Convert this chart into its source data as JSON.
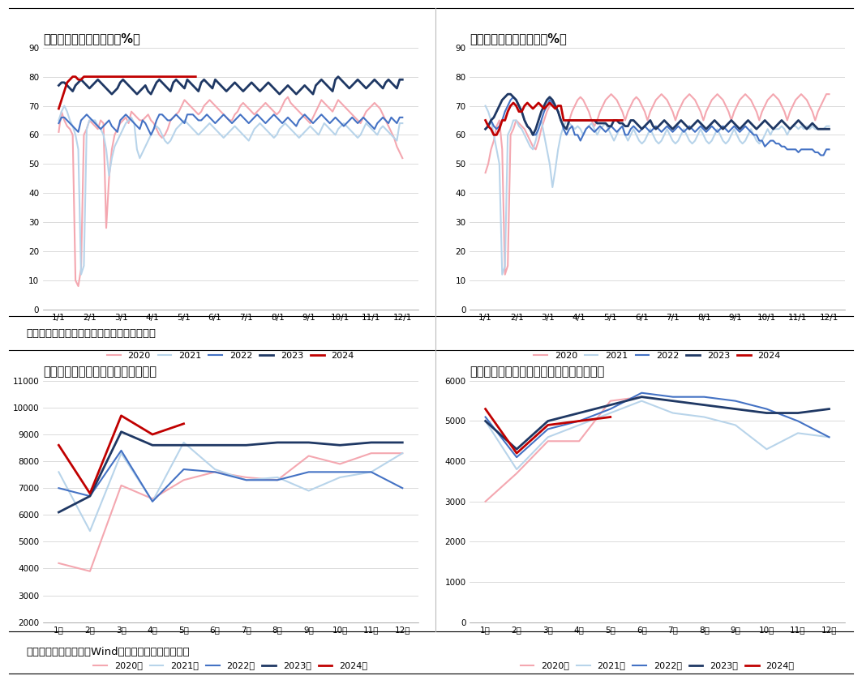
{
  "top_left_title": "图：半钢胎行业开工率（%）",
  "top_right_title": "图：全钢胎行业开工率（%）",
  "bottom_left_title": "图：中国橡胶轮胎外胎产量（万条）",
  "bottom_right_title": "图：中国新的充气橡胶轮胎出口量（万条）",
  "source1": "数据来源：钢联数据，广发期货发展研究中心",
  "source2": "数据来源：钢联数据，Wind，广发期货发展研究中心",
  "colors": {
    "2020": "#f4a7b0",
    "2021": "#b8d4ea",
    "2022": "#4472c4",
    "2023": "#1f3864",
    "2024": "#c00000"
  },
  "x_ticks_top": [
    "1/1",
    "2/1",
    "3/1",
    "4/1",
    "5/1",
    "6/1",
    "7/1",
    "8/1",
    "9/1",
    "10/1",
    "11/1",
    "12/1"
  ],
  "x_ticks_bottom": [
    "1月",
    "2月",
    "3月",
    "4月",
    "5月",
    "6月",
    "7月",
    "8月",
    "9月",
    "10月",
    "11月",
    "12月"
  ],
  "semi_2020": [
    61,
    68,
    65,
    63,
    62,
    60,
    10,
    8,
    14,
    60,
    62,
    65,
    64,
    63,
    62,
    65,
    64,
    28,
    45,
    55,
    60,
    62,
    64,
    65,
    66,
    64,
    68,
    67,
    66,
    65,
    65,
    66,
    67,
    65,
    64,
    62,
    60,
    59,
    60,
    62,
    65,
    66,
    67,
    68,
    70,
    72,
    71,
    70,
    69,
    68,
    67,
    68,
    70,
    71,
    72,
    71,
    70,
    69,
    68,
    67,
    66,
    65,
    65,
    67,
    68,
    70,
    71,
    70,
    69,
    68,
    67,
    68,
    69,
    70,
    71,
    70,
    69,
    68,
    67,
    68,
    70,
    72,
    73,
    71,
    70,
    69,
    68,
    67,
    66,
    65,
    64,
    66,
    68,
    70,
    72,
    71,
    70,
    69,
    68,
    70,
    72,
    71,
    70,
    69,
    68,
    67,
    66,
    65,
    64,
    66,
    68,
    69,
    70,
    71,
    70,
    69,
    67,
    65,
    63,
    61,
    59,
    56,
    54,
    52
  ],
  "semi_2021": [
    65,
    68,
    70,
    68,
    65,
    63,
    60,
    55,
    12,
    15,
    62,
    65,
    65,
    65,
    63,
    62,
    60,
    55,
    46,
    52,
    56,
    58,
    60,
    62,
    64,
    65,
    66,
    64,
    55,
    52,
    54,
    56,
    58,
    60,
    62,
    63,
    62,
    60,
    58,
    57,
    58,
    60,
    62,
    63,
    64,
    65,
    64,
    63,
    62,
    61,
    60,
    61,
    62,
    63,
    64,
    63,
    62,
    61,
    60,
    59,
    60,
    61,
    62,
    63,
    62,
    61,
    60,
    59,
    58,
    60,
    62,
    63,
    64,
    63,
    62,
    61,
    60,
    59,
    60,
    62,
    63,
    64,
    63,
    62,
    61,
    60,
    59,
    60,
    61,
    62,
    63,
    62,
    61,
    60,
    62,
    64,
    63,
    62,
    61,
    60,
    62,
    63,
    64,
    63,
    62,
    61,
    60,
    59,
    60,
    62,
    64,
    63,
    62,
    61,
    60,
    62,
    63,
    62,
    61,
    60,
    59,
    58,
    64,
    64
  ],
  "semi_2022": [
    64,
    66,
    66,
    65,
    64,
    63,
    62,
    61,
    65,
    66,
    67,
    66,
    65,
    64,
    63,
    62,
    63,
    64,
    65,
    63,
    62,
    61,
    65,
    66,
    67,
    66,
    65,
    64,
    63,
    62,
    65,
    64,
    62,
    60,
    62,
    65,
    67,
    67,
    66,
    65,
    65,
    66,
    67,
    66,
    65,
    64,
    67,
    67,
    67,
    66,
    65,
    65,
    66,
    67,
    66,
    65,
    64,
    65,
    66,
    67,
    66,
    65,
    64,
    65,
    66,
    67,
    66,
    65,
    64,
    65,
    66,
    67,
    66,
    65,
    64,
    65,
    66,
    67,
    66,
    65,
    64,
    65,
    66,
    65,
    64,
    63,
    65,
    66,
    67,
    66,
    65,
    64,
    65,
    66,
    67,
    66,
    65,
    64,
    65,
    66,
    65,
    64,
    63,
    64,
    65,
    66,
    65,
    64,
    65,
    66,
    65,
    64,
    63,
    62,
    64,
    65,
    66,
    65,
    64,
    66,
    65,
    64,
    66,
    66
  ],
  "semi_2023": [
    77,
    78,
    78,
    77,
    76,
    75,
    77,
    78,
    79,
    78,
    77,
    76,
    77,
    78,
    79,
    78,
    77,
    76,
    75,
    74,
    75,
    76,
    78,
    79,
    78,
    77,
    76,
    75,
    74,
    75,
    76,
    77,
    75,
    74,
    76,
    78,
    79,
    78,
    77,
    76,
    75,
    78,
    79,
    78,
    77,
    76,
    79,
    78,
    77,
    76,
    75,
    78,
    79,
    78,
    77,
    76,
    79,
    78,
    77,
    76,
    75,
    76,
    77,
    78,
    77,
    76,
    75,
    76,
    77,
    78,
    77,
    76,
    75,
    76,
    77,
    78,
    77,
    76,
    75,
    74,
    75,
    76,
    77,
    76,
    75,
    74,
    75,
    76,
    77,
    76,
    75,
    74,
    77,
    78,
    79,
    78,
    77,
    76,
    75,
    79,
    80,
    79,
    78,
    77,
    76,
    77,
    78,
    79,
    78,
    77,
    76,
    77,
    78,
    79,
    78,
    77,
    76,
    78,
    79,
    78,
    77,
    76,
    79,
    79
  ],
  "semi_2024": [
    69,
    72,
    75,
    78,
    79,
    80,
    80,
    79,
    79,
    80,
    80,
    80,
    80,
    80,
    80,
    80,
    80,
    80,
    80,
    80,
    80,
    80,
    80,
    80,
    80,
    80,
    80,
    80,
    80,
    80,
    80,
    80,
    80,
    80,
    80,
    80,
    80,
    80,
    80,
    80,
    80,
    80,
    80,
    80,
    80,
    80,
    80,
    80,
    80,
    80,
    null,
    null,
    null,
    null,
    null,
    null,
    null,
    null,
    null,
    null,
    null,
    null,
    null,
    null,
    null,
    null,
    null,
    null,
    null,
    null,
    null,
    null,
    null,
    null,
    null,
    null,
    null,
    null,
    null,
    null,
    null,
    null,
    null,
    null,
    null,
    null,
    null,
    null,
    null,
    null,
    null,
    null,
    null,
    null,
    null,
    null,
    null,
    null,
    null,
    null,
    null,
    null,
    null,
    null,
    null,
    null,
    null,
    null,
    null,
    null,
    null,
    null,
    null,
    null,
    null,
    null,
    null,
    null,
    null,
    null
  ],
  "full_2020": [
    47,
    50,
    55,
    58,
    63,
    65,
    55,
    12,
    15,
    60,
    62,
    65,
    64,
    63,
    62,
    60,
    58,
    56,
    55,
    58,
    62,
    65,
    68,
    70,
    72,
    70,
    68,
    65,
    63,
    62,
    65,
    68,
    70,
    72,
    73,
    72,
    70,
    68,
    65,
    63,
    65,
    68,
    70,
    72,
    73,
    74,
    73,
    72,
    70,
    68,
    65,
    68,
    70,
    72,
    73,
    72,
    70,
    68,
    65,
    68,
    70,
    72,
    73,
    74,
    73,
    72,
    70,
    68,
    65,
    68,
    70,
    72,
    73,
    74,
    73,
    72,
    70,
    68,
    65,
    68,
    70,
    72,
    73,
    74,
    73,
    72,
    70,
    68,
    65,
    68,
    70,
    72,
    73,
    74,
    73,
    72,
    70,
    68,
    65,
    68,
    70,
    72,
    73,
    74,
    73,
    72,
    70,
    68,
    65,
    68,
    70,
    72,
    73,
    74,
    73,
    72,
    70,
    68,
    65,
    68,
    70,
    72,
    74,
    74
  ],
  "full_2021": [
    70,
    68,
    65,
    60,
    55,
    50,
    12,
    15,
    60,
    62,
    65,
    65,
    63,
    62,
    60,
    58,
    56,
    55,
    58,
    62,
    65,
    60,
    55,
    50,
    42,
    48,
    55,
    60,
    63,
    65,
    64,
    63,
    62,
    63,
    62,
    60,
    62,
    63,
    64,
    62,
    60,
    62,
    63,
    64,
    62,
    60,
    58,
    60,
    62,
    63,
    60,
    58,
    60,
    62,
    60,
    58,
    57,
    58,
    60,
    62,
    60,
    58,
    57,
    58,
    60,
    62,
    60,
    58,
    57,
    58,
    60,
    62,
    60,
    58,
    57,
    58,
    60,
    62,
    60,
    58,
    57,
    58,
    60,
    62,
    60,
    58,
    57,
    58,
    60,
    62,
    60,
    58,
    57,
    58,
    60,
    62,
    60,
    58,
    57,
    58,
    60,
    62,
    60,
    62,
    62,
    62,
    63,
    62,
    60,
    62,
    63,
    63,
    62,
    63,
    62,
    63,
    62,
    63,
    62,
    62,
    62,
    62,
    63,
    63
  ],
  "full_2022": [
    62,
    63,
    65,
    63,
    62,
    63,
    65,
    68,
    70,
    72,
    73,
    72,
    70,
    68,
    65,
    63,
    62,
    60,
    60,
    62,
    65,
    68,
    70,
    72,
    71,
    70,
    68,
    65,
    62,
    60,
    62,
    63,
    60,
    60,
    58,
    60,
    62,
    63,
    62,
    61,
    62,
    63,
    62,
    61,
    62,
    63,
    62,
    61,
    62,
    63,
    60,
    60,
    62,
    63,
    62,
    61,
    62,
    63,
    62,
    61,
    62,
    63,
    62,
    61,
    62,
    63,
    62,
    61,
    62,
    63,
    62,
    61,
    62,
    63,
    62,
    61,
    62,
    63,
    62,
    61,
    62,
    63,
    62,
    61,
    62,
    63,
    62,
    61,
    62,
    63,
    62,
    61,
    62,
    63,
    62,
    61,
    60,
    60,
    58,
    58,
    56,
    57,
    58,
    58,
    57,
    57,
    56,
    56,
    55,
    55,
    55,
    55,
    54,
    55,
    55,
    55,
    55,
    55,
    54,
    54,
    53,
    53,
    55,
    55
  ],
  "full_2023": [
    62,
    63,
    65,
    66,
    68,
    70,
    72,
    73,
    74,
    74,
    73,
    72,
    70,
    68,
    65,
    63,
    62,
    60,
    62,
    65,
    68,
    70,
    72,
    73,
    72,
    70,
    68,
    65,
    63,
    62,
    65,
    65,
    65,
    65,
    65,
    65,
    65,
    65,
    65,
    65,
    64,
    64,
    64,
    64,
    63,
    63,
    65,
    65,
    64,
    64,
    63,
    63,
    65,
    65,
    64,
    63,
    62,
    63,
    64,
    65,
    63,
    62,
    63,
    64,
    65,
    64,
    63,
    62,
    63,
    64,
    65,
    64,
    63,
    62,
    63,
    64,
    65,
    64,
    63,
    62,
    63,
    64,
    65,
    64,
    63,
    62,
    63,
    64,
    65,
    64,
    63,
    62,
    63,
    64,
    65,
    64,
    63,
    62,
    63,
    64,
    65,
    64,
    63,
    62,
    63,
    64,
    65,
    64,
    63,
    62,
    63,
    64,
    65,
    64,
    63,
    62,
    63,
    64,
    63,
    62,
    62,
    62,
    62,
    62
  ],
  "full_2024": [
    65,
    63,
    62,
    60,
    60,
    62,
    65,
    65,
    68,
    70,
    71,
    70,
    68,
    68,
    70,
    71,
    70,
    69,
    70,
    71,
    70,
    69,
    70,
    71,
    70,
    69,
    70,
    70,
    65,
    65,
    65,
    65,
    65,
    65,
    65,
    65,
    65,
    65,
    65,
    65,
    65,
    65,
    65,
    65,
    65,
    65,
    65,
    65,
    65,
    65,
    null,
    null,
    null,
    null,
    null,
    null,
    null,
    null,
    null,
    null,
    null,
    null,
    null,
    null,
    null,
    null,
    null,
    null,
    null,
    null,
    null,
    null,
    null,
    null,
    null,
    null,
    null,
    null,
    null,
    null,
    null,
    null,
    null,
    null,
    null,
    null,
    null,
    null,
    null,
    null,
    null,
    null,
    null,
    null,
    null,
    null,
    null,
    null,
    null,
    null,
    null,
    null,
    null,
    null,
    null,
    null,
    null,
    null,
    null,
    null,
    null,
    null,
    null,
    null,
    null,
    null,
    null,
    null,
    null,
    null
  ],
  "prod_2020_y": [
    4200,
    3900,
    7100,
    6600,
    7300,
    7600,
    7400,
    7300,
    8200,
    7900,
    8300,
    8300
  ],
  "prod_2021_y": [
    7600,
    5400,
    8300,
    6500,
    8700,
    7700,
    7300,
    7400,
    6900,
    7400,
    7600,
    8300
  ],
  "prod_2022_y": [
    7000,
    6700,
    8400,
    6500,
    7700,
    7600,
    7300,
    7300,
    7600,
    7600,
    7600,
    7000
  ],
  "prod_2023_y": [
    6100,
    6700,
    9100,
    8600,
    8600,
    8600,
    8600,
    8700,
    8700,
    8600,
    8700,
    8700
  ],
  "prod_2024_y": [
    8600,
    6800,
    9700,
    9000,
    9400,
    null,
    null,
    null,
    null,
    null,
    null,
    null
  ],
  "export_2020_y": [
    3000,
    3700,
    4500,
    4500,
    5500,
    5600,
    null,
    null,
    null,
    null,
    null,
    null
  ],
  "export_2021_y": [
    5000,
    3800,
    4600,
    4900,
    5200,
    5500,
    5200,
    5100,
    4900,
    4300,
    4700,
    4600
  ],
  "export_2022_y": [
    5100,
    4100,
    4800,
    5000,
    5300,
    5700,
    5600,
    5600,
    5500,
    5300,
    5000,
    4600
  ],
  "export_2023_y": [
    5000,
    4300,
    5000,
    5200,
    5400,
    5600,
    5500,
    5400,
    5300,
    5200,
    5200,
    5300
  ],
  "export_2024_y": [
    5300,
    4200,
    4900,
    5000,
    5100,
    null,
    null,
    null,
    null,
    null,
    null,
    null
  ]
}
